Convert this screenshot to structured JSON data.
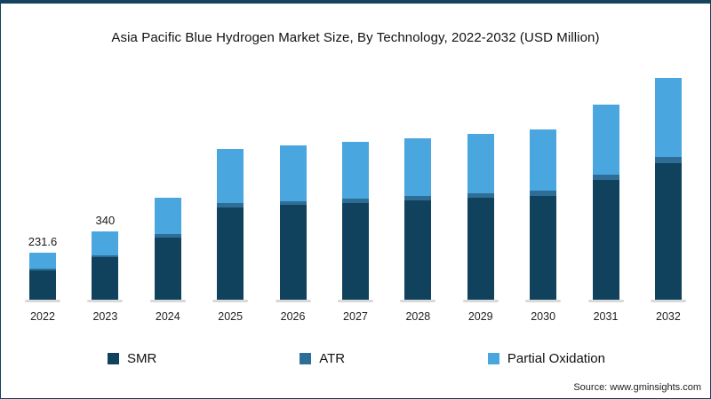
{
  "page": {
    "source_label": "Source: www.gminsights.com"
  },
  "chart_data": {
    "type": "bar",
    "stacked": true,
    "title": "Asia Pacific Blue Hydrogen Market Size, By Technology, 2022-2032 (USD Million)",
    "categories": [
      "2022",
      "2023",
      "2024",
      "2025",
      "2026",
      "2027",
      "2028",
      "2029",
      "2030",
      "2031",
      "2032"
    ],
    "series": [
      {
        "name": "SMR",
        "color": "#11425d",
        "values": [
          145,
          210,
          310,
          460,
          470,
          480,
          492,
          505,
          518,
          595,
          680
        ]
      },
      {
        "name": "ATR",
        "color": "#2e6e96",
        "values": [
          8,
          10,
          15,
          20,
          21,
          22,
          23,
          24,
          25,
          28,
          32
        ]
      },
      {
        "name": "Partial Oxidation",
        "color": "#4aa6de",
        "values": [
          78.6,
          120,
          180,
          270,
          275,
          281,
          288,
          296,
          303,
          345,
          390
        ]
      }
    ],
    "bar_labels": [
      "231.6",
      "340",
      null,
      null,
      null,
      null,
      null,
      null,
      null,
      null,
      null
    ],
    "totals": [
      231.6,
      340,
      505,
      750,
      766,
      783,
      803,
      825,
      846,
      968,
      1102
    ],
    "ylim": [
      0,
      1150
    ],
    "xlabel": "",
    "ylabel": "",
    "grid": false,
    "legend_position": "bottom"
  }
}
